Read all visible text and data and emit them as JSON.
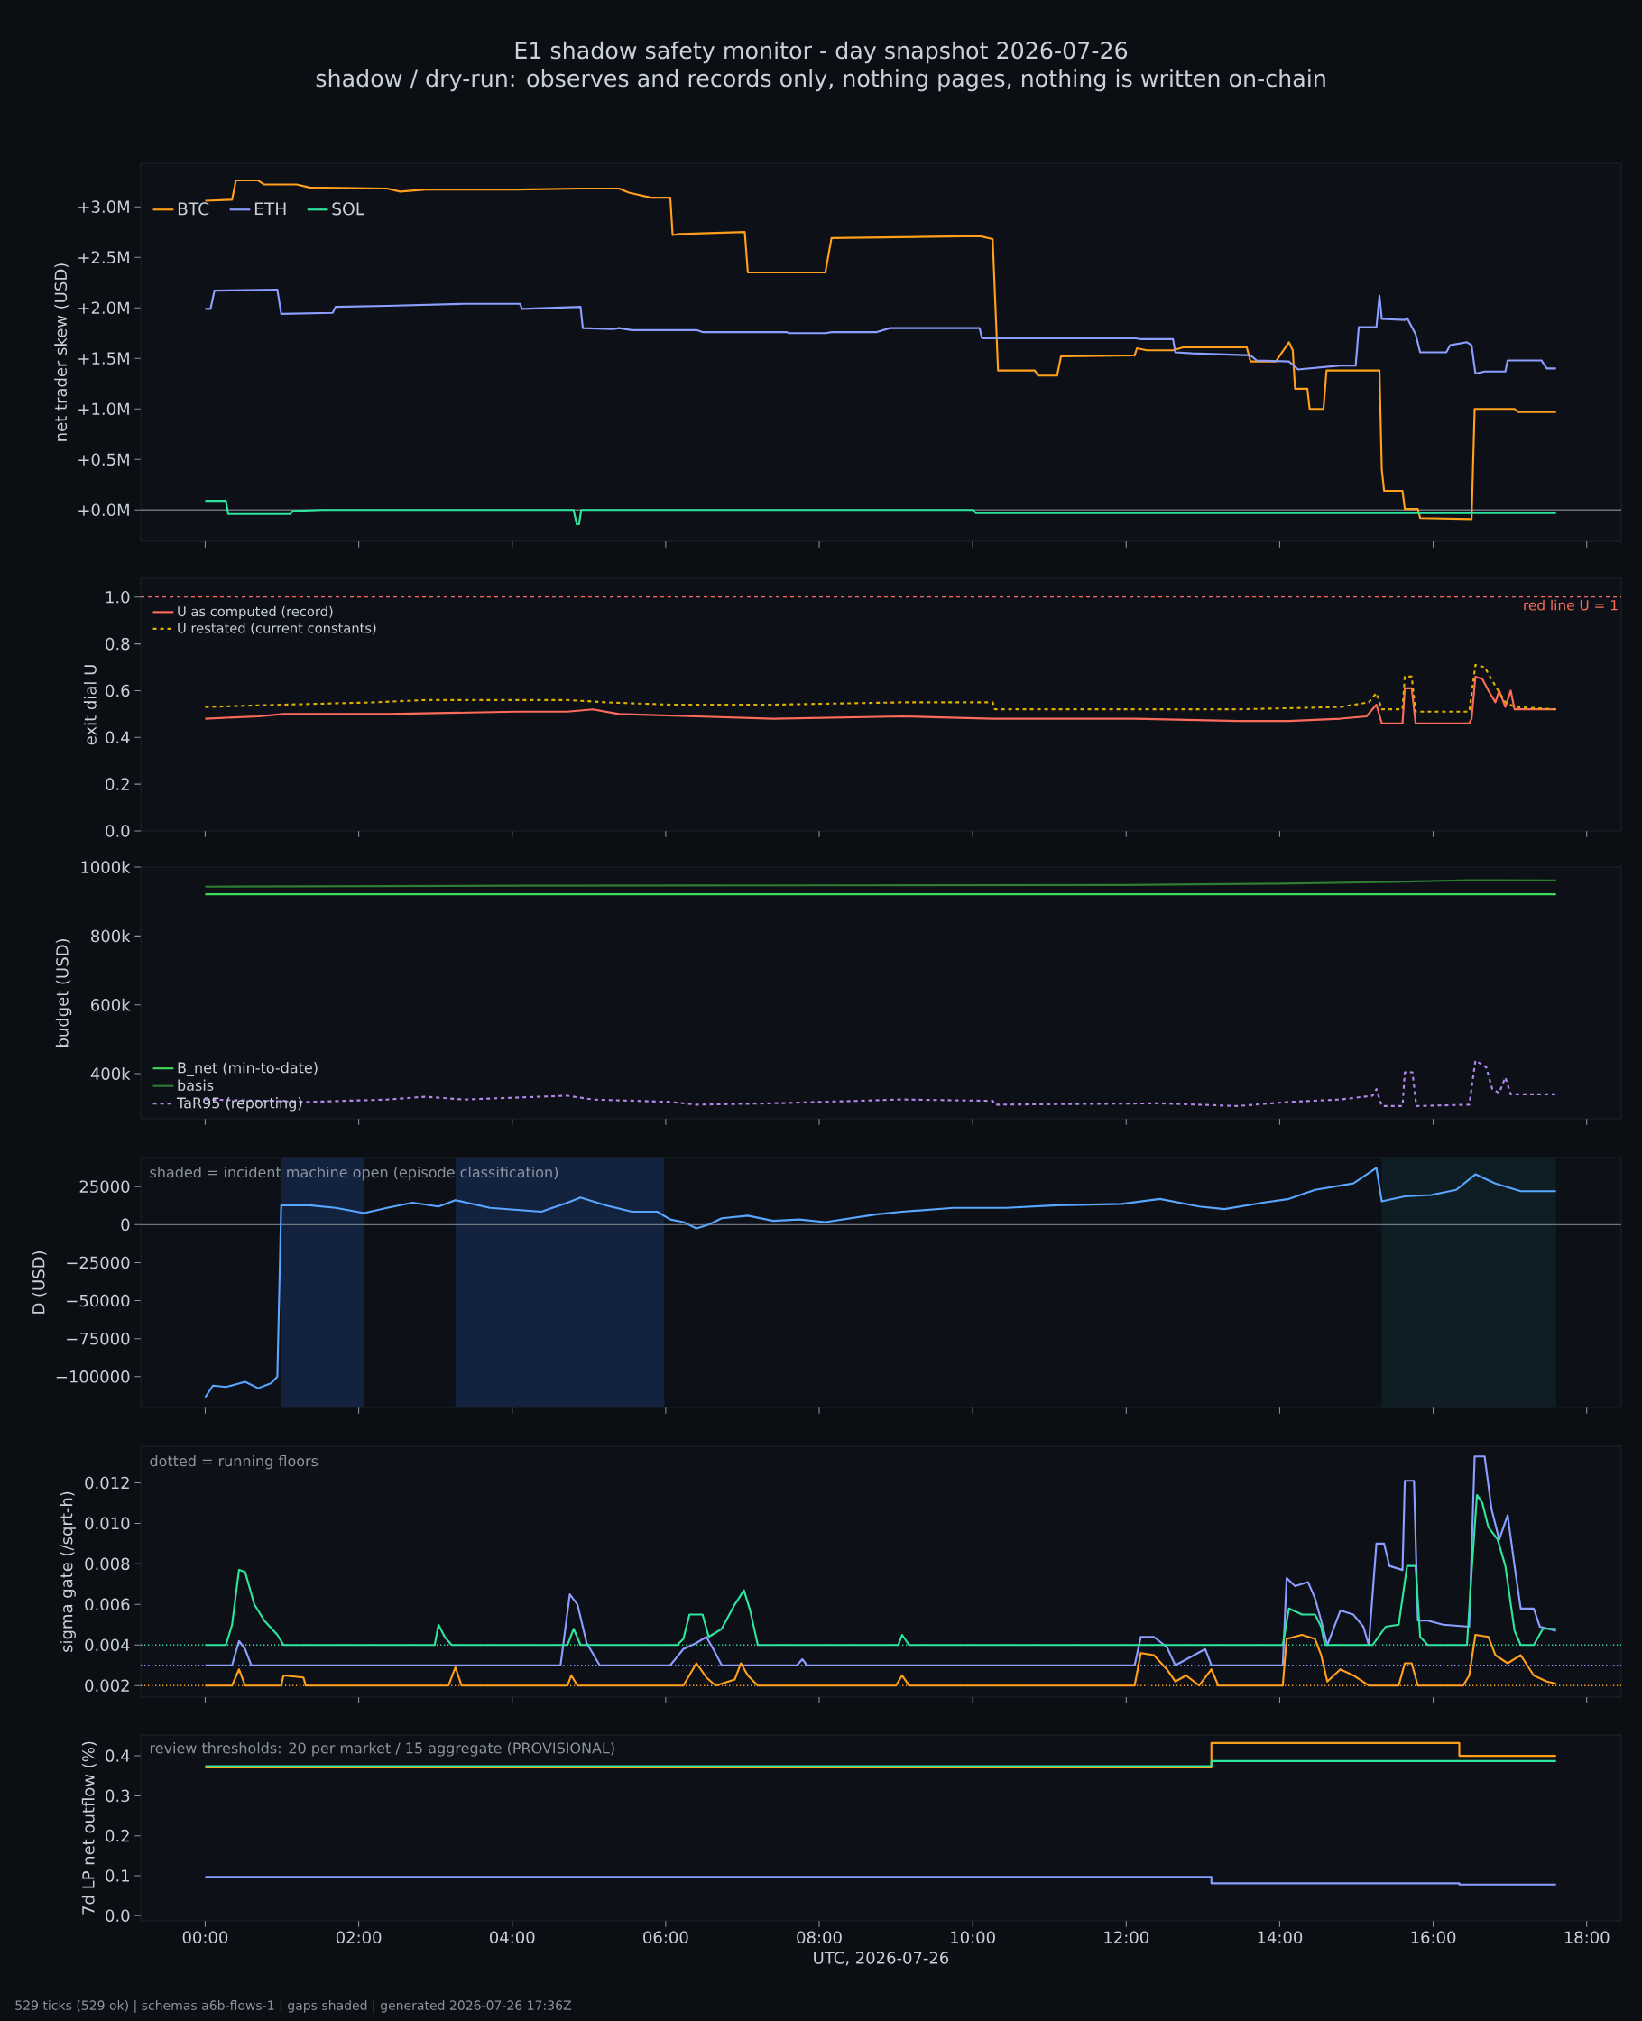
{
  "chart_data": [
    {
      "type": "line",
      "title": "E1 shadow safety monitor - day snapshot 2026-07-26",
      "subtitle": "shadow / dry-run: observes and records only, nothing pages, nothing is written on-chain",
      "ylabel": "net trader skew (USD)",
      "legend": "top left",
      "tick_labels": "y",
      "xlim": [
        -0.84,
        18.45
      ],
      "ylim": [
        -0.31,
        3.43
      ],
      "xticks": [
        {
          "value": 0,
          "label": null
        },
        {
          "value": 2,
          "label": null
        },
        {
          "value": 4,
          "label": null
        },
        {
          "value": 6,
          "label": null
        },
        {
          "value": 8,
          "label": null
        },
        {
          "value": 10,
          "label": null
        },
        {
          "value": 12,
          "label": null
        },
        {
          "value": 14,
          "label": null
        },
        {
          "value": 16,
          "label": null
        },
        {
          "value": 18,
          "label": null
        }
      ],
      "yticks": [
        {
          "value": 0,
          "label": "+0.0M"
        },
        {
          "value": 0.5,
          "label": "+0.5M"
        },
        {
          "value": 1.0,
          "label": "+1.0M"
        },
        {
          "value": 1.5,
          "label": "+1.5M"
        },
        {
          "value": 2.0,
          "label": "+2.0M"
        },
        {
          "value": 2.5,
          "label": "+2.5M"
        },
        {
          "value": 3.0,
          "label": "+3.0M"
        }
      ],
      "ref_lines": [
        {
          "axis": "y",
          "value": 0,
          "color": "#6e7681"
        }
      ],
      "series": [
        {
          "name": "BTC",
          "color": "#ff9f1c",
          "x": [
            0,
            0.35,
            0.4,
            0.69,
            0.77,
            1.19,
            1.36,
            2.37,
            2.54,
            2.87,
            4.05,
            4.89,
            5.39,
            5.52,
            5.81,
            6.06,
            6.09,
            6.18,
            7.03,
            7.07,
            8.08,
            8.16,
            10.09,
            10.26,
            10.33,
            10.81,
            10.85,
            11.1,
            11.15,
            12.11,
            12.14,
            12.27,
            12.61,
            12.74,
            13.57,
            13.62,
            13.95,
            14.12,
            14.17,
            14.2,
            14.36,
            14.39,
            14.57,
            14.61,
            15.3,
            15.33,
            15.36,
            15.6,
            15.63,
            15.8,
            15.83,
            16.5,
            16.54,
            17.06,
            17.11,
            17.6
          ],
          "values": [
            3.06,
            3.07,
            3.26,
            3.26,
            3.22,
            3.22,
            3.19,
            3.18,
            3.15,
            3.17,
            3.17,
            3.18,
            3.18,
            3.14,
            3.09,
            3.09,
            2.72,
            2.73,
            2.75,
            2.35,
            2.35,
            2.69,
            2.71,
            2.68,
            1.38,
            1.38,
            1.33,
            1.33,
            1.52,
            1.53,
            1.6,
            1.58,
            1.58,
            1.61,
            1.61,
            1.47,
            1.47,
            1.66,
            1.58,
            1.2,
            1.2,
            1.0,
            1.0,
            1.38,
            1.38,
            0.4,
            0.19,
            0.19,
            0.01,
            0.01,
            -0.08,
            -0.09,
            1.0,
            1.0,
            0.97,
            0.97
          ]
        },
        {
          "name": "ETH",
          "color": "#8c9eff",
          "x": [
            0,
            0.07,
            0.12,
            0.94,
            0.99,
            1.66,
            1.7,
            2.37,
            3.37,
            4.1,
            4.13,
            4.89,
            4.92,
            5.31,
            5.39,
            5.56,
            6.4,
            6.48,
            7.57,
            7.61,
            7.74,
            8.08,
            8.16,
            8.75,
            8.92,
            10.09,
            10.12,
            12.11,
            12.19,
            12.61,
            12.64,
            12.86,
            13.62,
            13.7,
            14.12,
            14.24,
            14.79,
            14.99,
            15.03,
            15.26,
            15.3,
            15.33,
            15.63,
            15.66,
            15.77,
            15.83,
            16.17,
            16.22,
            16.44,
            16.5,
            16.55,
            16.67,
            16.94,
            16.97,
            17.41,
            17.48,
            17.6
          ],
          "values": [
            1.99,
            1.99,
            2.17,
            2.18,
            1.94,
            1.95,
            2.01,
            2.02,
            2.04,
            2.04,
            1.99,
            2.01,
            1.8,
            1.79,
            1.8,
            1.78,
            1.78,
            1.76,
            1.76,
            1.75,
            1.75,
            1.75,
            1.76,
            1.76,
            1.8,
            1.8,
            1.7,
            1.7,
            1.69,
            1.69,
            1.56,
            1.55,
            1.53,
            1.48,
            1.47,
            1.39,
            1.43,
            1.43,
            1.81,
            1.81,
            2.12,
            1.89,
            1.88,
            1.9,
            1.74,
            1.56,
            1.56,
            1.63,
            1.66,
            1.63,
            1.35,
            1.37,
            1.37,
            1.48,
            1.48,
            1.4,
            1.4
          ]
        },
        {
          "name": "SOL",
          "color": "#2ee59d",
          "x": [
            0,
            0.27,
            0.3,
            1.11,
            1.14,
            1.53,
            4.8,
            4.84,
            4.87,
            4.9,
            10.01,
            10.04,
            17.6
          ],
          "values": [
            0.09,
            0.09,
            -0.04,
            -0.04,
            -0.01,
            0.0,
            0.0,
            -0.14,
            -0.14,
            0.0,
            0.0,
            -0.03,
            -0.03
          ]
        }
      ]
    },
    {
      "type": "line",
      "ylabel": "exit dial U",
      "legend": "top left",
      "tick_labels": "y",
      "xlim": [
        -0.84,
        18.45
      ],
      "ylim": [
        0,
        1.08
      ],
      "xticks": [
        {
          "value": 0,
          "label": null
        },
        {
          "value": 2,
          "label": null
        },
        {
          "value": 4,
          "label": null
        },
        {
          "value": 6,
          "label": null
        },
        {
          "value": 8,
          "label": null
        },
        {
          "value": 10,
          "label": null
        },
        {
          "value": 12,
          "label": null
        },
        {
          "value": 14,
          "label": null
        },
        {
          "value": 16,
          "label": null
        },
        {
          "value": 18,
          "label": null
        }
      ],
      "yticks": [
        {
          "value": 0,
          "label": "0.0"
        },
        {
          "value": 0.2,
          "label": "0.2"
        },
        {
          "value": 0.4,
          "label": "0.4"
        },
        {
          "value": 0.6,
          "label": "0.6"
        },
        {
          "value": 0.8,
          "label": "0.8"
        },
        {
          "value": 1.0,
          "label": "1.0"
        }
      ],
      "ref_lines": [
        {
          "axis": "y",
          "value": 1.0,
          "label": "red line U = 1",
          "color": "#ff6b5b",
          "line_style": "dashed"
        }
      ],
      "series": [
        {
          "name": "U as computed (record)",
          "color": "#ff6b5b",
          "x": [
            0,
            0.69,
            1.02,
            2.37,
            4.05,
            4.72,
            5.05,
            5.39,
            6.4,
            7.4,
            9.08,
            10.26,
            12.11,
            13.45,
            14.12,
            14.79,
            15.13,
            15.26,
            15.33,
            15.6,
            15.63,
            15.72,
            15.77,
            16.47,
            16.5,
            16.55,
            16.64,
            16.72,
            16.81,
            16.86,
            16.94,
            17.01,
            17.06,
            17.6
          ],
          "values": [
            0.48,
            0.49,
            0.5,
            0.5,
            0.51,
            0.51,
            0.52,
            0.5,
            0.49,
            0.48,
            0.49,
            0.48,
            0.48,
            0.47,
            0.47,
            0.48,
            0.49,
            0.54,
            0.46,
            0.46,
            0.61,
            0.61,
            0.46,
            0.46,
            0.48,
            0.66,
            0.65,
            0.6,
            0.55,
            0.6,
            0.53,
            0.6,
            0.52,
            0.52
          ]
        },
        {
          "name": "U restated (current constants)",
          "color": "#e0b000",
          "line_style": "dashed",
          "x": [
            0,
            1.02,
            2.2,
            2.87,
            4.72,
            5.22,
            6.06,
            7.4,
            9.08,
            10.26,
            10.29,
            12.11,
            13.45,
            14.79,
            15.16,
            15.26,
            15.33,
            15.6,
            15.63,
            15.72,
            15.77,
            16.47,
            16.55,
            16.67,
            16.81,
            16.94,
            17.06,
            17.6
          ],
          "values": [
            0.53,
            0.54,
            0.55,
            0.56,
            0.56,
            0.55,
            0.54,
            0.54,
            0.55,
            0.55,
            0.52,
            0.52,
            0.52,
            0.53,
            0.55,
            0.59,
            0.52,
            0.52,
            0.66,
            0.66,
            0.51,
            0.51,
            0.71,
            0.7,
            0.62,
            0.55,
            0.53,
            0.52
          ]
        }
      ]
    },
    {
      "type": "line",
      "ylabel": "budget (USD)",
      "legend": "bottom left",
      "tick_labels": "y",
      "xlim": [
        -0.84,
        18.45
      ],
      "ylim": [
        269000,
        1000000
      ],
      "xticks": [
        {
          "value": 0,
          "label": null
        },
        {
          "value": 2,
          "label": null
        },
        {
          "value": 4,
          "label": null
        },
        {
          "value": 6,
          "label": null
        },
        {
          "value": 8,
          "label": null
        },
        {
          "value": 10,
          "label": null
        },
        {
          "value": 12,
          "label": null
        },
        {
          "value": 14,
          "label": null
        },
        {
          "value": 16,
          "label": null
        },
        {
          "value": 18,
          "label": null
        }
      ],
      "yticks": [
        {
          "value": 400000,
          "label": "400k"
        },
        {
          "value": 600000,
          "label": "600k"
        },
        {
          "value": 800000,
          "label": "800k"
        },
        {
          "value": 1000000,
          "label": "1000k"
        }
      ],
      "series": [
        {
          "name": "B_net (min-to-date)",
          "color": "#3ddc5c",
          "x": [
            0,
            17.6
          ],
          "values": [
            921000,
            921000
          ]
        },
        {
          "name": "basis",
          "color": "#2e7d32",
          "x": [
            0,
            4,
            8,
            12,
            14,
            15.5,
            16.5,
            17.6
          ],
          "values": [
            943000,
            946000,
            947000,
            948000,
            952000,
            957000,
            962000,
            961000
          ]
        },
        {
          "name": "TaR95 (reporting)",
          "color": "#b388eb",
          "line_style": "dashed",
          "x": [
            0,
            1.36,
            2.37,
            2.87,
            3.37,
            4.72,
            5.05,
            6.06,
            6.4,
            7.4,
            9.08,
            10.26,
            10.29,
            12.44,
            13.45,
            14.12,
            14.79,
            15.21,
            15.26,
            15.33,
            15.6,
            15.63,
            15.73,
            15.78,
            16.47,
            16.55,
            16.69,
            16.77,
            16.86,
            16.94,
            17.01,
            17.6
          ],
          "values": [
            325000,
            318000,
            325000,
            333000,
            325000,
            336000,
            325000,
            318000,
            310000,
            314000,
            325000,
            321000,
            310000,
            314000,
            306000,
            318000,
            325000,
            336000,
            355000,
            306000,
            306000,
            404000,
            404000,
            306000,
            310000,
            438000,
            419000,
            355000,
            344000,
            389000,
            340000,
            340000
          ]
        }
      ]
    },
    {
      "type": "line",
      "ylabel": "D (USD)",
      "tick_labels": "y",
      "annotations": [
        "shaded = incident machine open (episode classification)"
      ],
      "xlim": [
        -0.84,
        18.45
      ],
      "ylim": [
        -120300,
        44100
      ],
      "xticks": [
        {
          "value": 0,
          "label": null
        },
        {
          "value": 2,
          "label": null
        },
        {
          "value": 4,
          "label": null
        },
        {
          "value": 6,
          "label": null
        },
        {
          "value": 8,
          "label": null
        },
        {
          "value": 10,
          "label": null
        },
        {
          "value": 12,
          "label": null
        },
        {
          "value": 14,
          "label": null
        },
        {
          "value": 16,
          "label": null
        },
        {
          "value": 18,
          "label": null
        }
      ],
      "yticks": [
        {
          "value": -100000,
          "label": "−100000"
        },
        {
          "value": -75000,
          "label": "−75000"
        },
        {
          "value": -50000,
          "label": "−50000"
        },
        {
          "value": -25000,
          "label": "−25000"
        },
        {
          "value": 0,
          "label": "0"
        },
        {
          "value": 25000,
          "label": "25000"
        }
      ],
      "ref_lines": [
        {
          "axis": "y",
          "value": 0,
          "color": "#6e7681"
        }
      ],
      "bands": [
        {
          "axis": "x",
          "from": 0.99,
          "to": 2.07,
          "color": "#13233f"
        },
        {
          "axis": "x",
          "from": 3.26,
          "to": 5.98,
          "color": "#13233f"
        },
        {
          "axis": "x",
          "from": 15.33,
          "to": 17.6,
          "color": "#0f1e24"
        }
      ],
      "series": [
        {
          "color": "#58a6ff",
          "x": [
            0,
            0.1,
            0.27,
            0.52,
            0.69,
            0.86,
            0.94,
            0.99,
            1.36,
            1.7,
            2.07,
            2.37,
            2.7,
            3.04,
            3.26,
            3.71,
            4.38,
            4.72,
            4.89,
            5.22,
            5.56,
            5.89,
            6.06,
            6.23,
            6.4,
            6.56,
            6.73,
            7.07,
            7.4,
            7.74,
            8.08,
            8.75,
            9.08,
            9.75,
            10.43,
            11.1,
            11.94,
            12.44,
            12.95,
            13.28,
            13.78,
            14.12,
            14.46,
            14.96,
            15.26,
            15.33,
            15.63,
            15.97,
            16.3,
            16.55,
            16.81,
            17.14,
            17.6
          ],
          "values": [
            -113600,
            -105900,
            -106800,
            -103400,
            -107600,
            -104200,
            -100000,
            12700,
            12700,
            11000,
            7600,
            11000,
            14400,
            11900,
            16100,
            11000,
            8500,
            14400,
            17800,
            12700,
            8500,
            8500,
            3400,
            1700,
            -2500,
            0,
            4200,
            5900,
            2500,
            3400,
            1700,
            6800,
            8500,
            11000,
            11000,
            12700,
            13600,
            16900,
            11900,
            10200,
            14400,
            16900,
            22900,
            27100,
            37300,
            15300,
            18600,
            19500,
            22900,
            33100,
            27100,
            22000,
            22000
          ]
        }
      ]
    },
    {
      "type": "line",
      "ylabel": "sigma gate (/sqrt-h)",
      "tick_labels": "y",
      "annotations": [
        "dotted = running floors"
      ],
      "xlim": [
        -0.84,
        18.45
      ],
      "ylim": [
        0.00143,
        0.0138
      ],
      "xticks": [
        {
          "value": 0,
          "label": null
        },
        {
          "value": 2,
          "label": null
        },
        {
          "value": 4,
          "label": null
        },
        {
          "value": 6,
          "label": null
        },
        {
          "value": 8,
          "label": null
        },
        {
          "value": 10,
          "label": null
        },
        {
          "value": 12,
          "label": null
        },
        {
          "value": 14,
          "label": null
        },
        {
          "value": 16,
          "label": null
        },
        {
          "value": 18,
          "label": null
        }
      ],
      "yticks": [
        {
          "value": 0.002,
          "label": "0.002"
        },
        {
          "value": 0.004,
          "label": "0.004"
        },
        {
          "value": 0.006,
          "label": "0.006"
        },
        {
          "value": 0.008,
          "label": "0.008"
        },
        {
          "value": 0.01,
          "label": "0.010"
        },
        {
          "value": 0.012,
          "label": "0.012"
        }
      ],
      "ref_lines": [
        {
          "axis": "y",
          "value": 0.004,
          "color": "#2ee59d",
          "line_style": "dotted"
        },
        {
          "axis": "y",
          "value": 0.003,
          "color": "#8c9eff",
          "line_style": "dotted"
        },
        {
          "axis": "y",
          "value": 0.002,
          "color": "#ff9f1c",
          "line_style": "dotted"
        }
      ],
      "series": [
        {
          "color": "#8c9eff",
          "x": [
            0,
            0.35,
            0.44,
            0.52,
            0.6,
            4.63,
            4.75,
            4.85,
            4.97,
            5.14,
            6.06,
            6.23,
            6.4,
            6.53,
            6.62,
            6.73,
            7.71,
            7.78,
            7.84,
            12.11,
            12.19,
            12.36,
            12.53,
            12.64,
            13.03,
            13.11,
            14.04,
            14.09,
            14.2,
            14.37,
            14.46,
            14.54,
            14.62,
            14.79,
            14.96,
            15.09,
            15.16,
            15.26,
            15.36,
            15.43,
            15.6,
            15.63,
            15.75,
            15.8,
            15.93,
            16.13,
            16.47,
            16.54,
            16.67,
            16.76,
            16.86,
            16.97,
            17.06,
            17.14,
            17.31,
            17.39,
            17.6
          ],
          "values": [
            0.003,
            0.003,
            0.0042,
            0.0038,
            0.003,
            0.003,
            0.0065,
            0.006,
            0.0041,
            0.003,
            0.003,
            0.0038,
            0.0041,
            0.0044,
            0.0038,
            0.003,
            0.003,
            0.0033,
            0.003,
            0.003,
            0.0044,
            0.0044,
            0.0039,
            0.003,
            0.0038,
            0.003,
            0.003,
            0.0073,
            0.0069,
            0.0071,
            0.0063,
            0.0052,
            0.004,
            0.0057,
            0.0055,
            0.0049,
            0.004,
            0.009,
            0.009,
            0.0079,
            0.0077,
            0.0121,
            0.0121,
            0.0052,
            0.0052,
            0.005,
            0.0049,
            0.0133,
            0.0133,
            0.0107,
            0.0092,
            0.0104,
            0.0079,
            0.0058,
            0.0058,
            0.0049,
            0.0047
          ]
        },
        {
          "color": "#2ee59d",
          "x": [
            0,
            0.27,
            0.35,
            0.44,
            0.52,
            0.64,
            0.77,
            0.94,
            1.02,
            2.99,
            3.04,
            3.12,
            3.21,
            4.72,
            4.8,
            4.89,
            6.15,
            6.23,
            6.31,
            6.48,
            6.56,
            6.73,
            6.9,
            7.02,
            7.1,
            7.2,
            9.03,
            9.08,
            9.17,
            14.04,
            14.12,
            14.29,
            14.46,
            14.54,
            14.59,
            15.21,
            15.38,
            15.55,
            15.66,
            15.77,
            15.83,
            15.93,
            16.44,
            16.5,
            16.57,
            16.64,
            16.72,
            16.84,
            16.94,
            17.06,
            17.14,
            17.31,
            17.43,
            17.6
          ],
          "values": [
            0.004,
            0.004,
            0.005,
            0.0077,
            0.0076,
            0.006,
            0.0052,
            0.0045,
            0.004,
            0.004,
            0.005,
            0.0044,
            0.004,
            0.004,
            0.0048,
            0.004,
            0.004,
            0.0043,
            0.0055,
            0.0055,
            0.0044,
            0.0048,
            0.006,
            0.0067,
            0.0057,
            0.004,
            0.004,
            0.0045,
            0.004,
            0.004,
            0.0058,
            0.0055,
            0.0055,
            0.0049,
            0.004,
            0.004,
            0.0049,
            0.005,
            0.0079,
            0.0079,
            0.0044,
            0.004,
            0.004,
            0.0076,
            0.0114,
            0.011,
            0.0098,
            0.0092,
            0.0079,
            0.0047,
            0.004,
            0.004,
            0.0048,
            0.0048
          ]
        },
        {
          "color": "#ff9f1c",
          "x": [
            0,
            0.35,
            0.44,
            0.52,
            0.99,
            1.02,
            1.28,
            1.31,
            3.17,
            3.26,
            3.34,
            4.72,
            4.77,
            4.85,
            6.23,
            6.4,
            6.53,
            6.65,
            6.9,
            6.98,
            7.07,
            7.2,
            9.0,
            9.08,
            9.17,
            12.11,
            12.19,
            12.36,
            12.53,
            12.64,
            12.78,
            12.95,
            13.11,
            13.2,
            14.04,
            14.09,
            14.29,
            14.46,
            14.54,
            14.62,
            14.79,
            14.96,
            15.16,
            15.55,
            15.63,
            15.72,
            15.8,
            16.39,
            16.47,
            16.55,
            16.72,
            16.81,
            16.97,
            17.14,
            17.31,
            17.48,
            17.6
          ],
          "values": [
            0.002,
            0.002,
            0.0028,
            0.002,
            0.002,
            0.0025,
            0.0024,
            0.002,
            0.002,
            0.0029,
            0.002,
            0.002,
            0.0025,
            0.002,
            0.002,
            0.0031,
            0.0024,
            0.002,
            0.0023,
            0.0031,
            0.0025,
            0.002,
            0.002,
            0.0025,
            0.002,
            0.002,
            0.0036,
            0.0035,
            0.0028,
            0.0022,
            0.0025,
            0.002,
            0.0028,
            0.002,
            0.002,
            0.0043,
            0.0045,
            0.0043,
            0.0035,
            0.0022,
            0.0028,
            0.0025,
            0.002,
            0.002,
            0.0031,
            0.0031,
            0.002,
            0.002,
            0.0025,
            0.0045,
            0.0044,
            0.0035,
            0.0031,
            0.0035,
            0.0025,
            0.0022,
            0.0021
          ]
        }
      ]
    },
    {
      "type": "line",
      "ylabel": "7d LP net outflow (%)",
      "xlabel": "UTC, 2026-07-26",
      "annotations": [
        "review thresholds: 20 per market / 15 aggregate (PROVISIONAL)",
        "529 ticks (529 ok) | schemas a6b-flows-1 | gaps shaded | generated 2026-07-26 17:36Z"
      ],
      "xlim": [
        -0.84,
        18.45
      ],
      "ylim": [
        -0.013,
        0.452
      ],
      "xticks": [
        {
          "value": 0,
          "label": "00:00"
        },
        {
          "value": 2,
          "label": "02:00"
        },
        {
          "value": 4,
          "label": "04:00"
        },
        {
          "value": 6,
          "label": "06:00"
        },
        {
          "value": 8,
          "label": "08:00"
        },
        {
          "value": 10,
          "label": "10:00"
        },
        {
          "value": 12,
          "label": "12:00"
        },
        {
          "value": 14,
          "label": "14:00"
        },
        {
          "value": 16,
          "label": "16:00"
        },
        {
          "value": 18,
          "label": "18:00"
        }
      ],
      "yticks": [
        {
          "value": 0,
          "label": "0.0"
        },
        {
          "value": 0.1,
          "label": "0.1"
        },
        {
          "value": 0.2,
          "label": "0.2"
        },
        {
          "value": 0.3,
          "label": "0.3"
        },
        {
          "value": 0.4,
          "label": "0.4"
        }
      ],
      "series": [
        {
          "color": "#ff9f1c",
          "x": [
            0,
            13.11,
            13.11,
            16.34,
            16.34,
            17.6
          ],
          "values": [
            0.371,
            0.371,
            0.432,
            0.432,
            0.4,
            0.4
          ]
        },
        {
          "color": "#2ee59d",
          "x": [
            0,
            13.11,
            13.11,
            17.6
          ],
          "values": [
            0.374,
            0.374,
            0.387,
            0.387
          ]
        },
        {
          "color": "#8c9eff",
          "x": [
            0,
            13.11,
            13.11,
            16.34,
            16.34,
            17.6
          ],
          "values": [
            0.097,
            0.097,
            0.081,
            0.081,
            0.078,
            0.078
          ]
        }
      ]
    }
  ]
}
